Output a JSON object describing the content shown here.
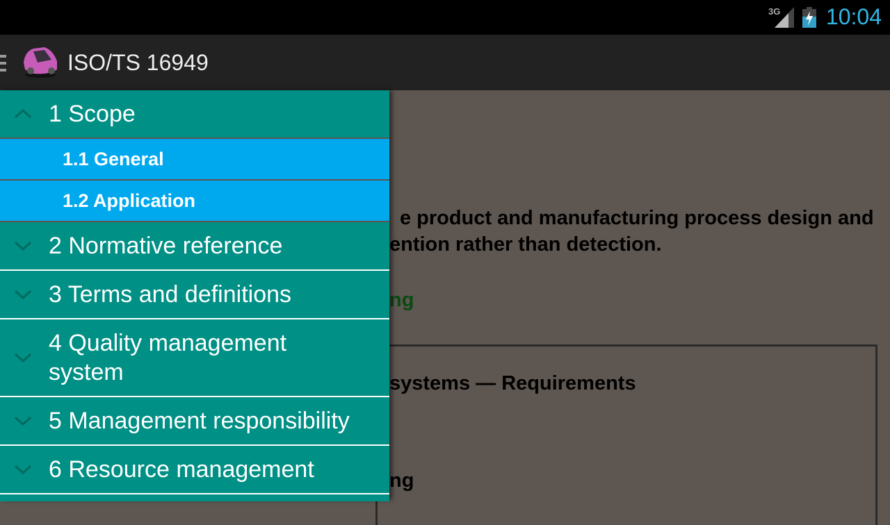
{
  "status_bar": {
    "network": "3G",
    "time": "10:04",
    "signal_icon": "signal-icon",
    "battery_icon": "battery-charging-icon",
    "clock_color": "#33b5e5"
  },
  "app_bar": {
    "title": "ISO/TS 16949",
    "menu_icon": "hamburger-menu-icon",
    "logo_icon": "pink-car-logo"
  },
  "content": {
    "line1": "e product and manufacturing process design and",
    "line2": "ention rather than detection.",
    "green_heading": "ng",
    "box_line": "systems — Requirements",
    "bottom_fragment": "ng"
  },
  "drawer": {
    "colors": {
      "section": "#009085",
      "subsection": "#00a8ee"
    },
    "sections": [
      {
        "label": "1 Scope",
        "expanded": true,
        "children": [
          {
            "label": "1.1 General"
          },
          {
            "label": "1.2 Application"
          }
        ]
      },
      {
        "label": "2 Normative reference",
        "expanded": false
      },
      {
        "label": "3 Terms and definitions",
        "expanded": false
      },
      {
        "label": "4 Quality management system",
        "expanded": false
      },
      {
        "label": "5 Management responsibility",
        "expanded": false
      },
      {
        "label": "6 Resource management",
        "expanded": false
      }
    ]
  }
}
